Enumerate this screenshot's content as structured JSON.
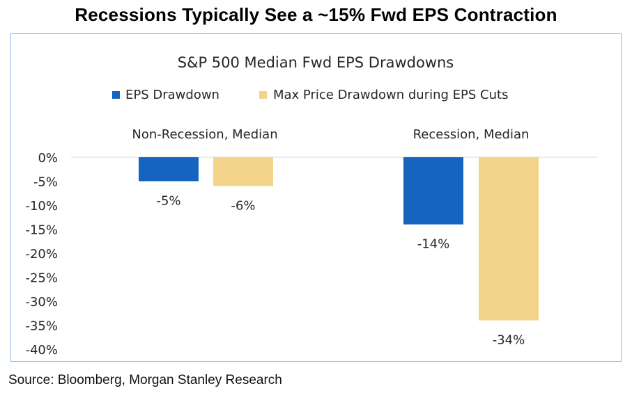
{
  "page": {
    "title": "Recessions Typically See a ~15% Fwd EPS Contraction",
    "source": "Source: Bloomberg, Morgan Stanley Research"
  },
  "chart_data": {
    "type": "bar",
    "title": "S&P 500 Median Fwd EPS Drawdowns",
    "categories": [
      "Non-Recession, Median",
      "Recession, Median"
    ],
    "series": [
      {
        "name": "EPS Drawdown",
        "values": [
          -5,
          -14
        ],
        "labels": [
          "-5%",
          "-14%"
        ],
        "color": "#1565c0"
      },
      {
        "name": "Max Price Drawdown during EPS Cuts",
        "values": [
          -6,
          -34
        ],
        "labels": [
          "-6%",
          "-34%"
        ],
        "color": "#f2d58a"
      }
    ],
    "y_ticks": [
      0,
      -5,
      -10,
      -15,
      -20,
      -25,
      -30,
      -35,
      -40
    ],
    "y_tick_labels": [
      "0%",
      "-5%",
      "-10%",
      "-15%",
      "-20%",
      "-25%",
      "-30%",
      "-35%",
      "-40%"
    ],
    "ylim": [
      -40,
      0
    ],
    "xlabel": "",
    "ylabel": "",
    "legend_position": "top-center",
    "grid": false,
    "category_labels_position": "top"
  }
}
